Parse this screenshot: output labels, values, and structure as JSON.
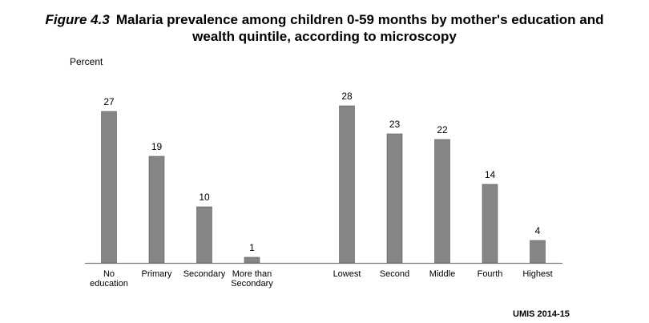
{
  "title": {
    "figure_label": "Figure 4.3",
    "line1": "Malaria prevalence among children 0-59 months by mother's education and",
    "line2": "wealth quintile, according to microscopy"
  },
  "source": "UMIS 2014-15",
  "chart_data": {
    "type": "bar",
    "ylabel": "Percent",
    "ylim": [
      0,
      30
    ],
    "grid": false,
    "bar_color": "#858585",
    "groups": [
      {
        "categories": [
          [
            "No",
            "education"
          ],
          [
            "Primary"
          ],
          [
            "Secondary"
          ],
          [
            "More than",
            "Secondary"
          ]
        ],
        "values": [
          27,
          19,
          10,
          1
        ]
      },
      {
        "categories": [
          [
            "Lowest"
          ],
          [
            "Second"
          ],
          [
            "Middle"
          ],
          [
            "Fourth"
          ],
          [
            "Highest"
          ]
        ],
        "values": [
          28,
          23,
          22,
          14,
          4
        ]
      }
    ]
  }
}
